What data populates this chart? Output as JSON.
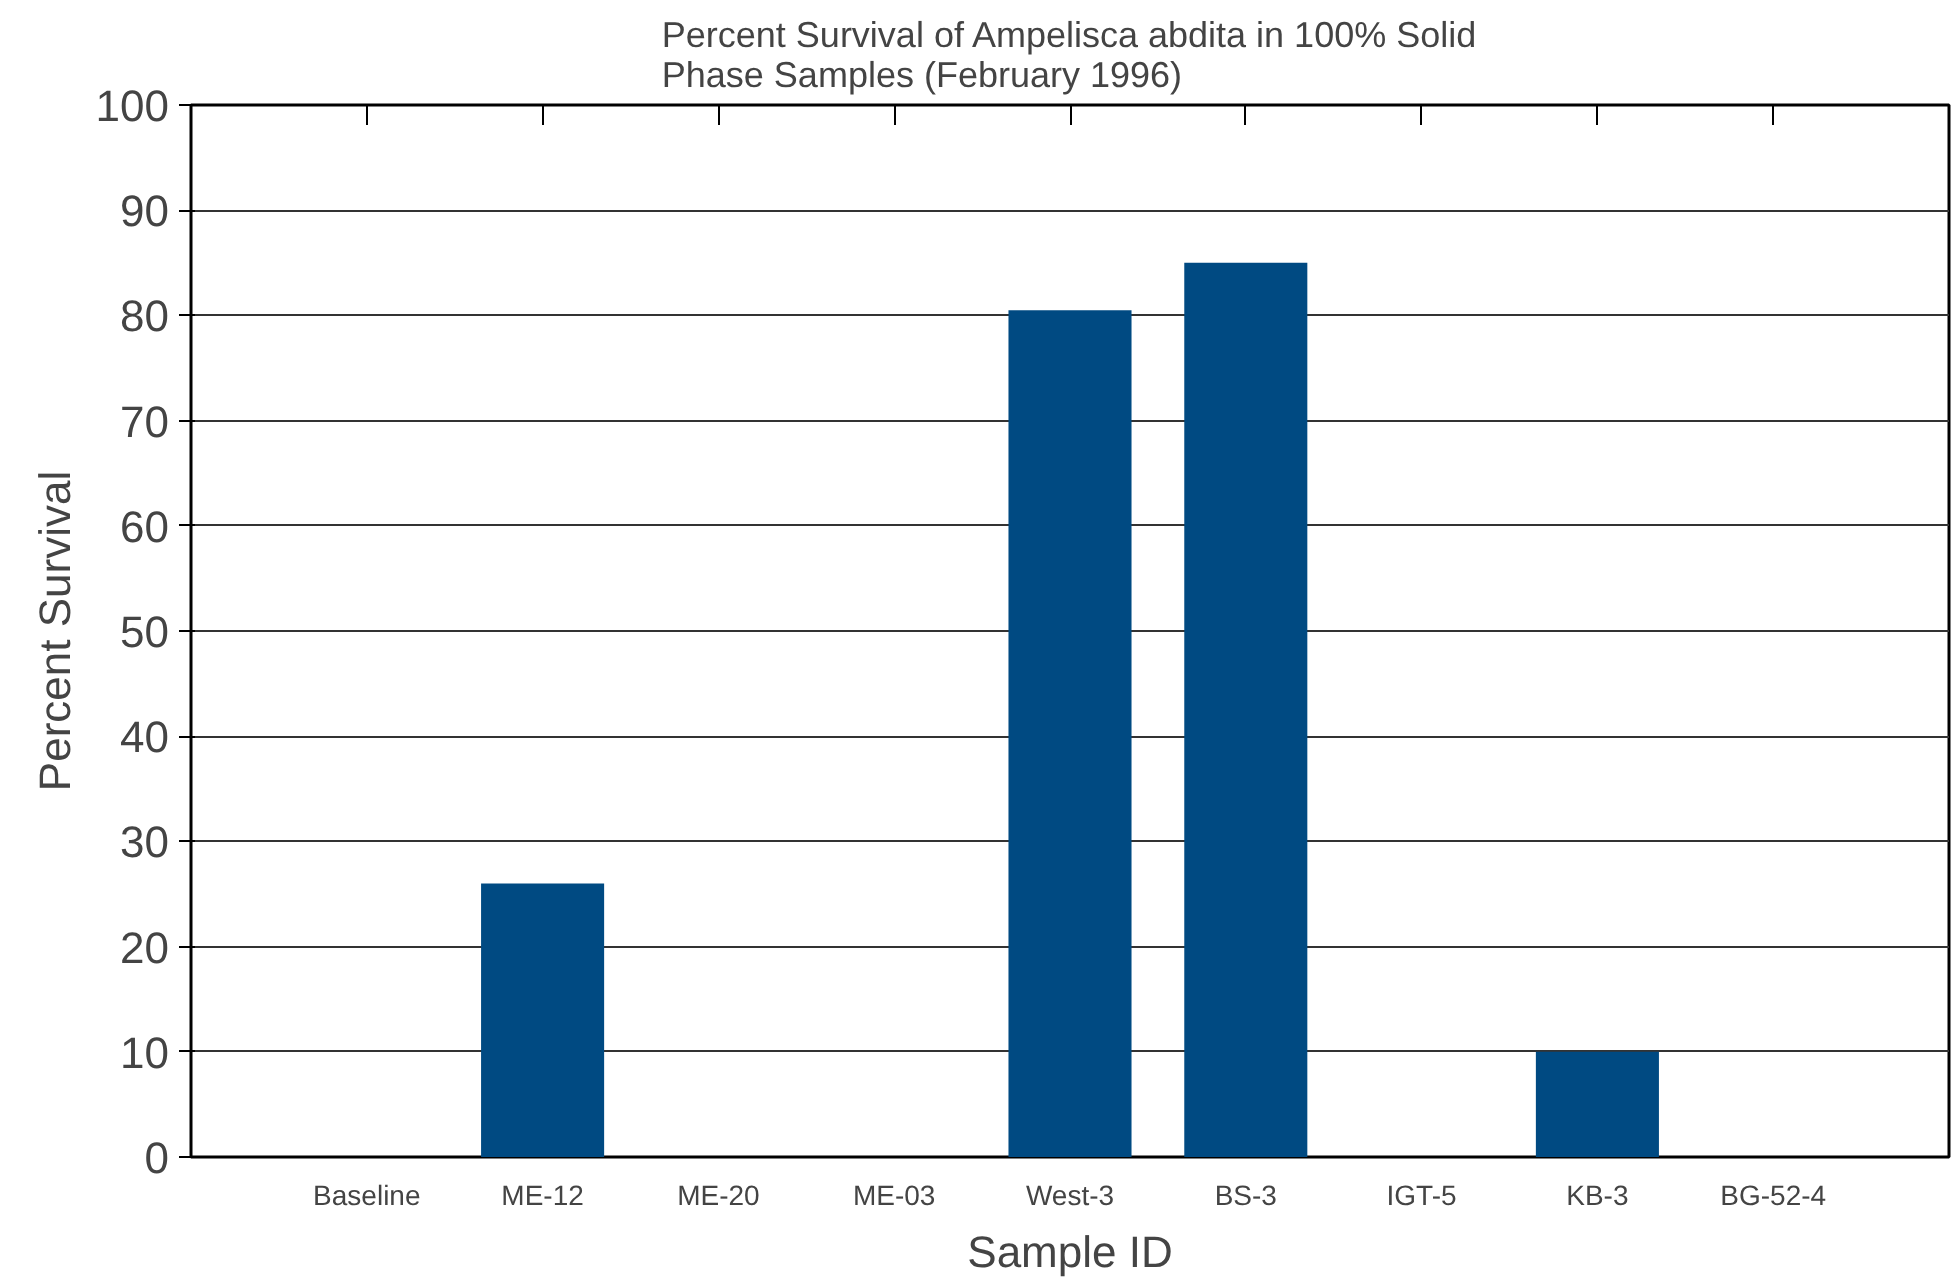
{
  "chart_data": {
    "type": "bar",
    "title": "Percent Survival of Ampelisca abdita in 100% Solid Phase Samples (February 1996)",
    "xlabel": "Sample ID",
    "ylabel": "Percent Survival",
    "categories": [
      "Baseline",
      "ME-12",
      "ME-20",
      "ME-03",
      "West-3",
      "BS-3",
      "IGT-5",
      "KB-3",
      "BG-52-4"
    ],
    "values": [
      0,
      26,
      0,
      0,
      80.5,
      85,
      0,
      10,
      0
    ],
    "color": "#004a82",
    "ylim": [
      0,
      100
    ],
    "yticks": [
      0,
      10,
      20,
      30,
      40,
      50,
      60,
      70,
      80,
      90,
      100
    ],
    "grid": "y"
  }
}
